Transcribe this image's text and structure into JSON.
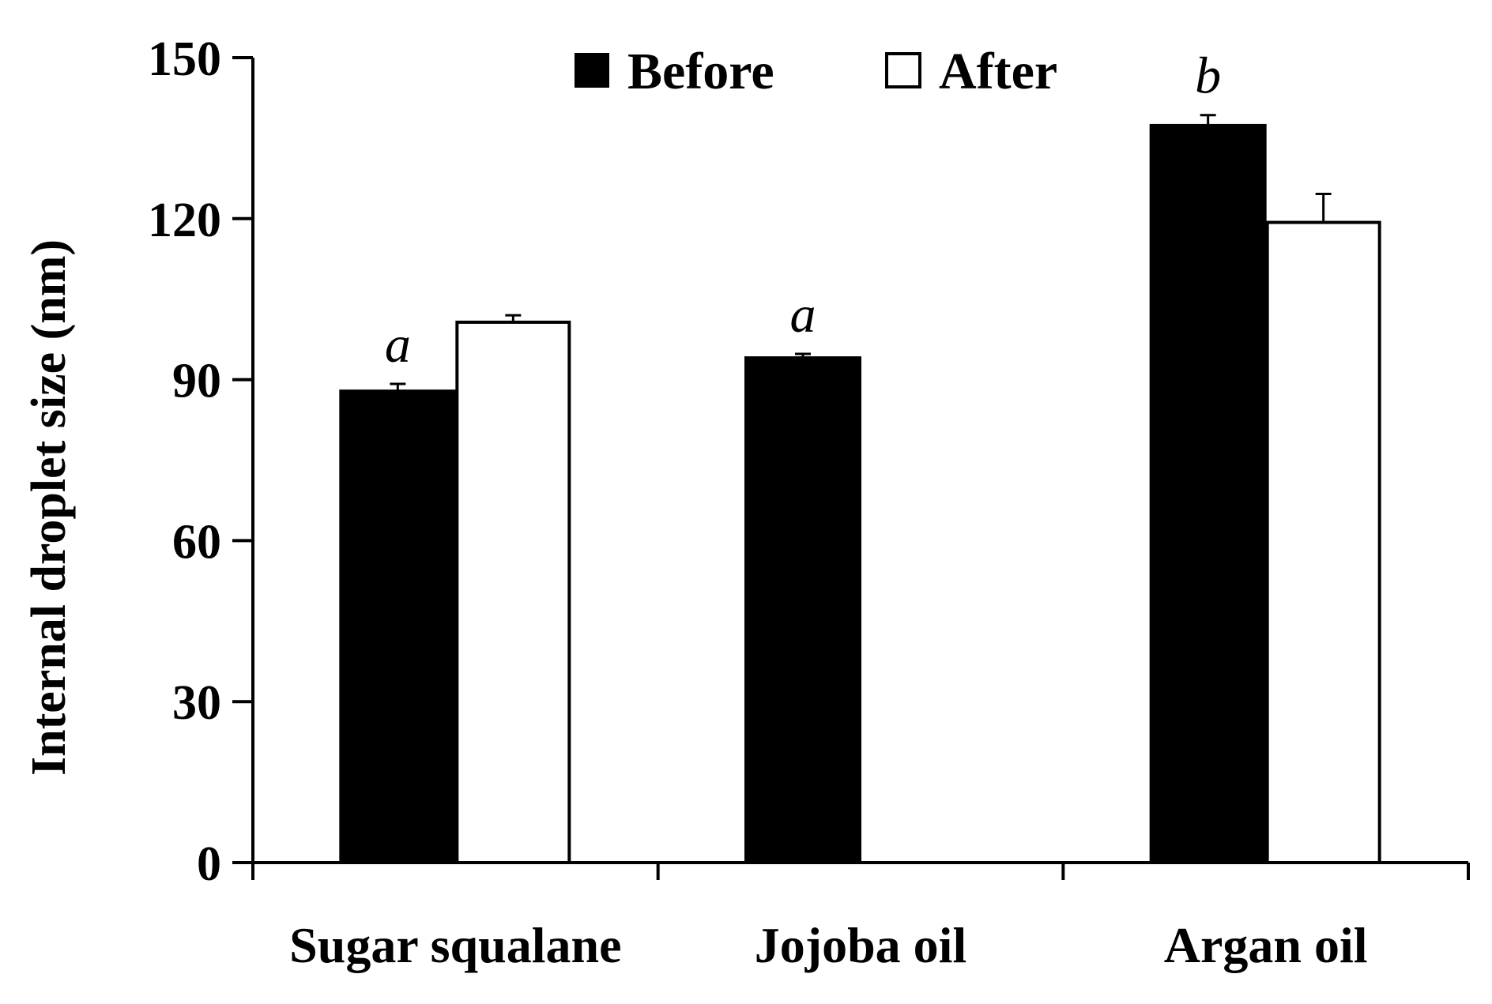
{
  "chart_data": {
    "type": "bar",
    "categories": [
      "Sugar squalane",
      "Jojoba oil",
      "Argan oil"
    ],
    "series": [
      {
        "name": "Before",
        "values": [
          88,
          94.2,
          137.5
        ],
        "errors": [
          1.2,
          0.6,
          1.8
        ],
        "color": "#000000"
      },
      {
        "name": "After",
        "values": [
          100.7,
          null,
          119.3
        ],
        "errors": [
          1.3,
          null,
          5.3
        ],
        "color": "#ffffff"
      }
    ],
    "annotations": [
      "a",
      "a",
      "b"
    ],
    "xlabel": "",
    "ylabel": "Internal droplet size (nm)",
    "ylim": [
      0,
      150
    ],
    "yticks": [
      "0",
      "30",
      "60",
      "90",
      "120",
      "150"
    ],
    "legend_position": "top-center",
    "grid": false
  }
}
